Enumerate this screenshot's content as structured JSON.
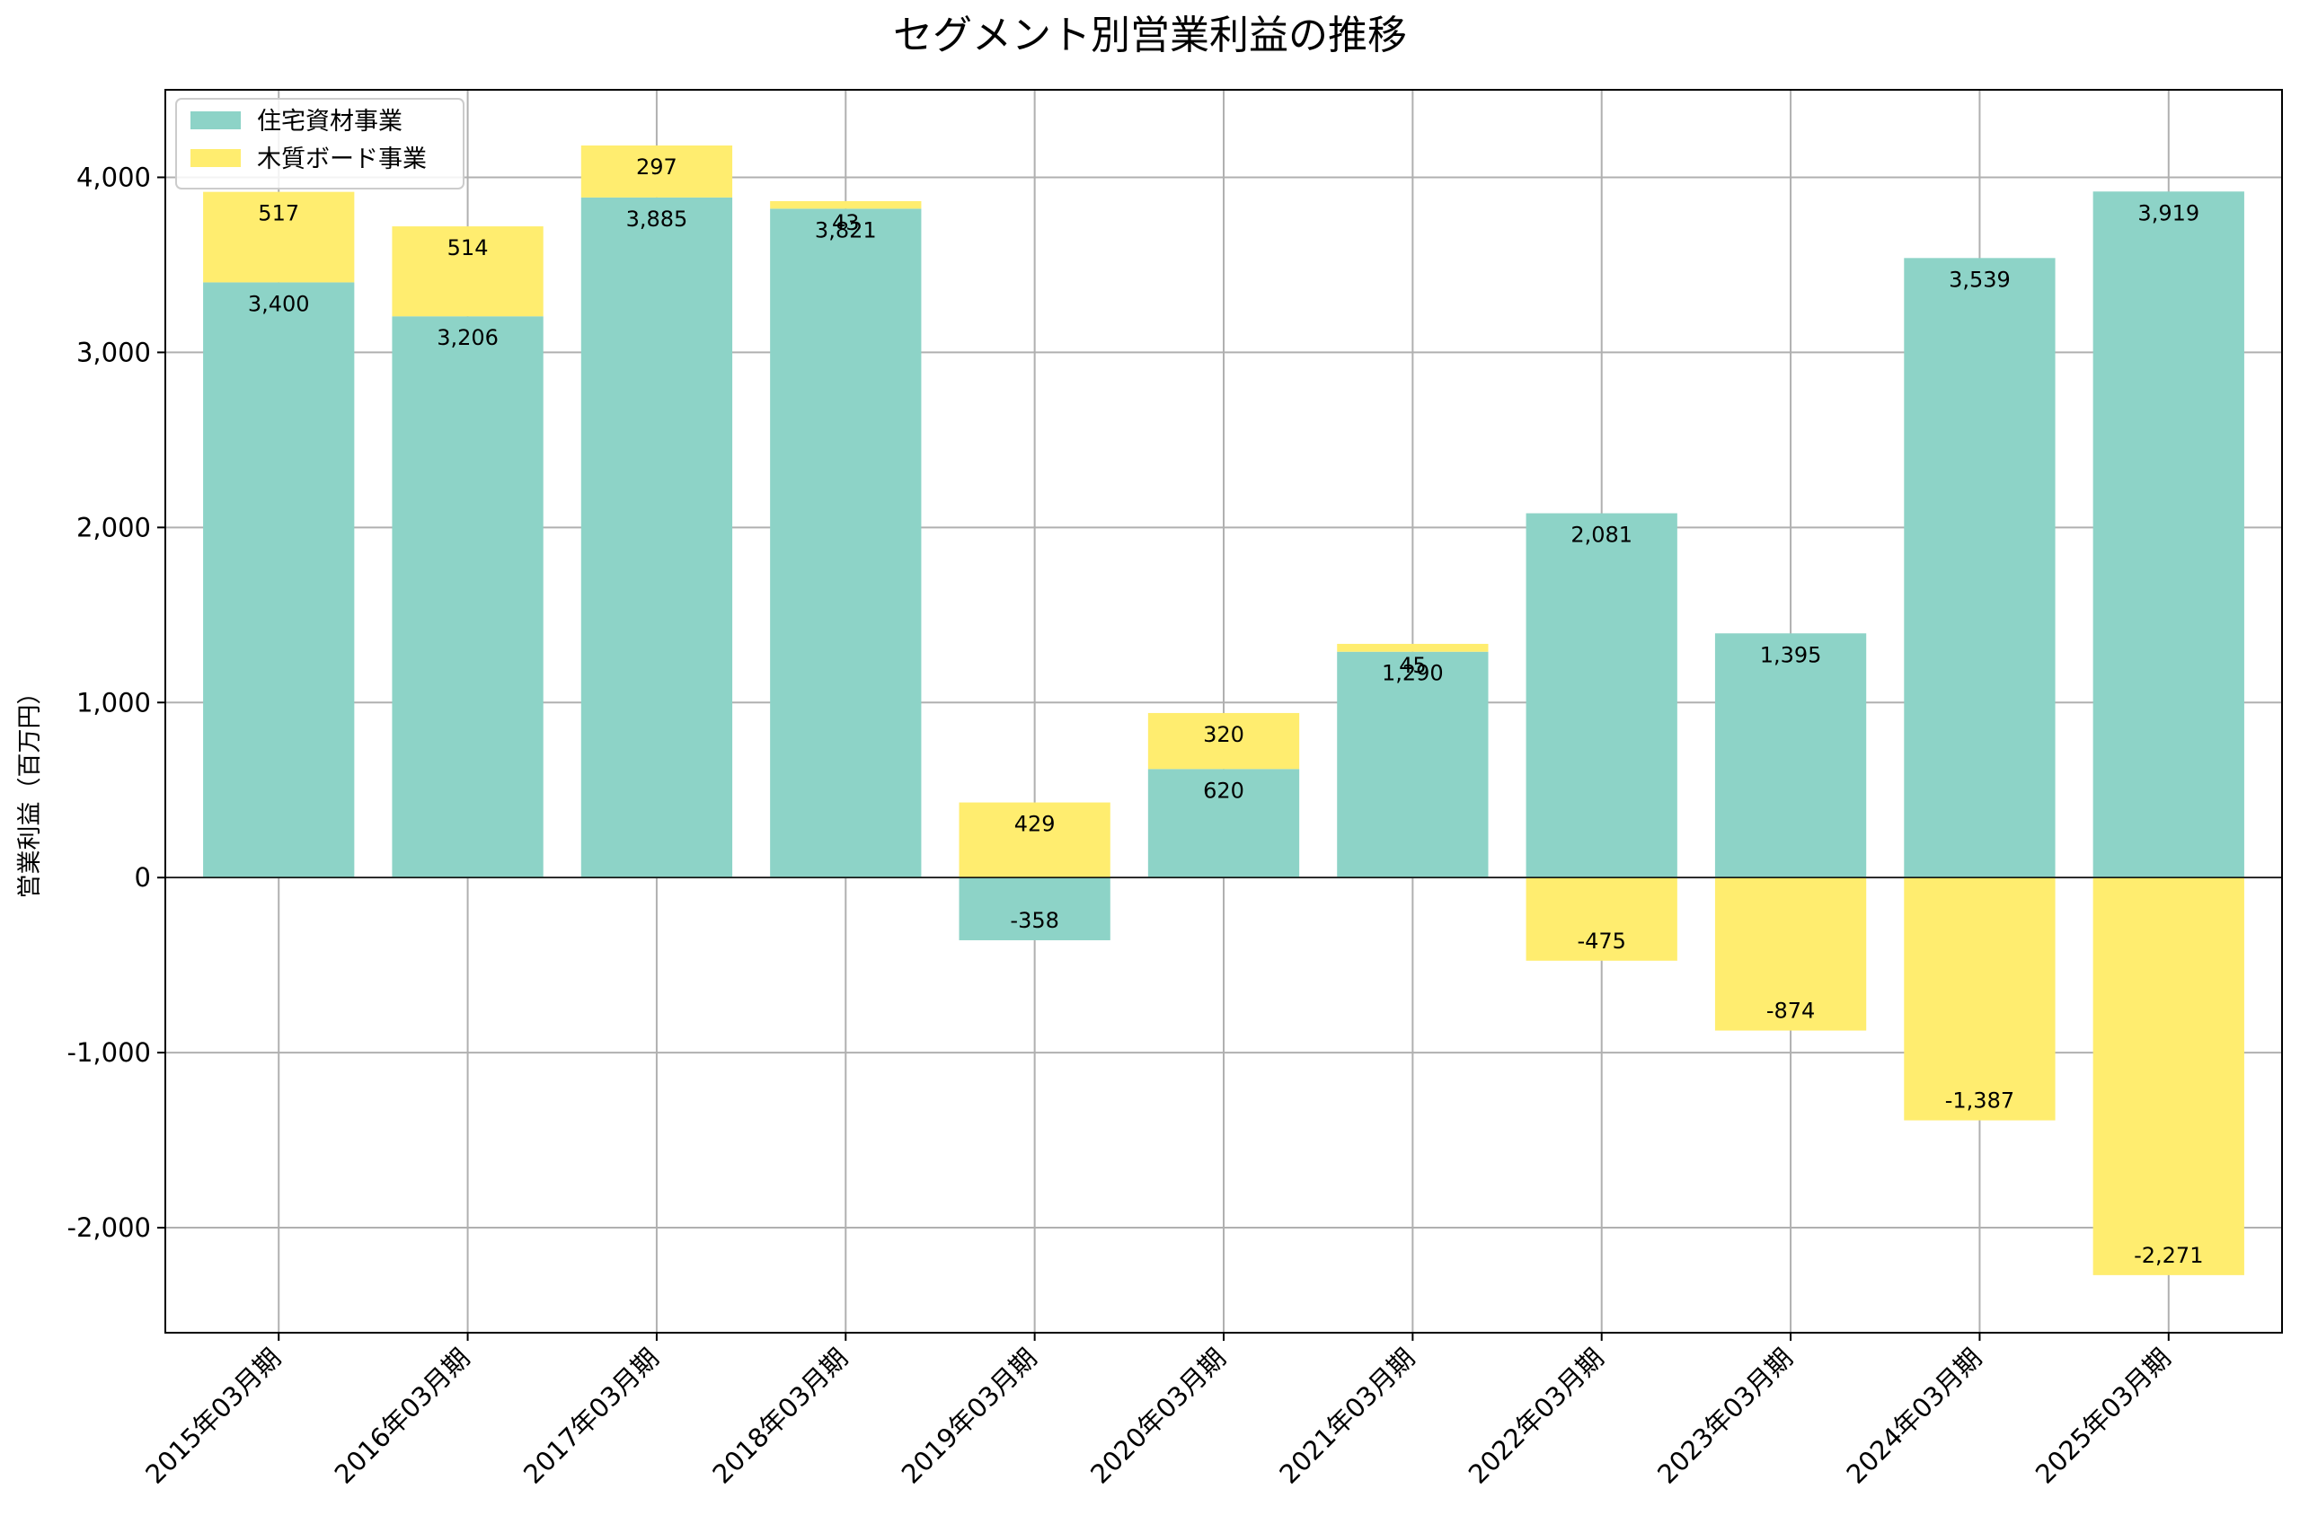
{
  "chart_data": {
    "type": "bar",
    "stacked": true,
    "title": "セグメント別営業利益の推移",
    "xlabel": "",
    "ylabel": "営業利益（百万円）",
    "ylim": [
      -2600,
      4500
    ],
    "yticks": [
      -2000,
      -1000,
      0,
      1000,
      2000,
      3000,
      4000
    ],
    "ytick_labels": [
      "-2,000",
      "-1,000",
      "0",
      "1,000",
      "2,000",
      "3,000",
      "4,000"
    ],
    "grid": true,
    "legend_position": "top-left",
    "categories": [
      "2015年03月期",
      "2016年03月期",
      "2017年03月期",
      "2018年03月期",
      "2019年03月期",
      "2020年03月期",
      "2021年03月期",
      "2022年03月期",
      "2023年03月期",
      "2024年03月期",
      "2025年03月期"
    ],
    "series": [
      {
        "name": "住宅資材事業",
        "color": "#8dd3c7",
        "values": [
          3400,
          3206,
          3885,
          3821,
          -358,
          620,
          1290,
          2081,
          1395,
          3539,
          3919
        ],
        "labels": [
          "3,400",
          "3,206",
          "3,885",
          "3,821",
          "-358",
          "620",
          "1,290",
          "2,081",
          "1,395",
          "3,539",
          "3,919"
        ]
      },
      {
        "name": "木質ボード事業",
        "color": "#ffed6f",
        "values": [
          517,
          514,
          297,
          43,
          429,
          320,
          45,
          -475,
          -874,
          -1387,
          -2271
        ],
        "labels": [
          "517",
          "514",
          "297",
          "43",
          "429",
          "320",
          "45",
          "-475",
          "-874",
          "-1,387",
          "-2,271"
        ]
      }
    ]
  }
}
